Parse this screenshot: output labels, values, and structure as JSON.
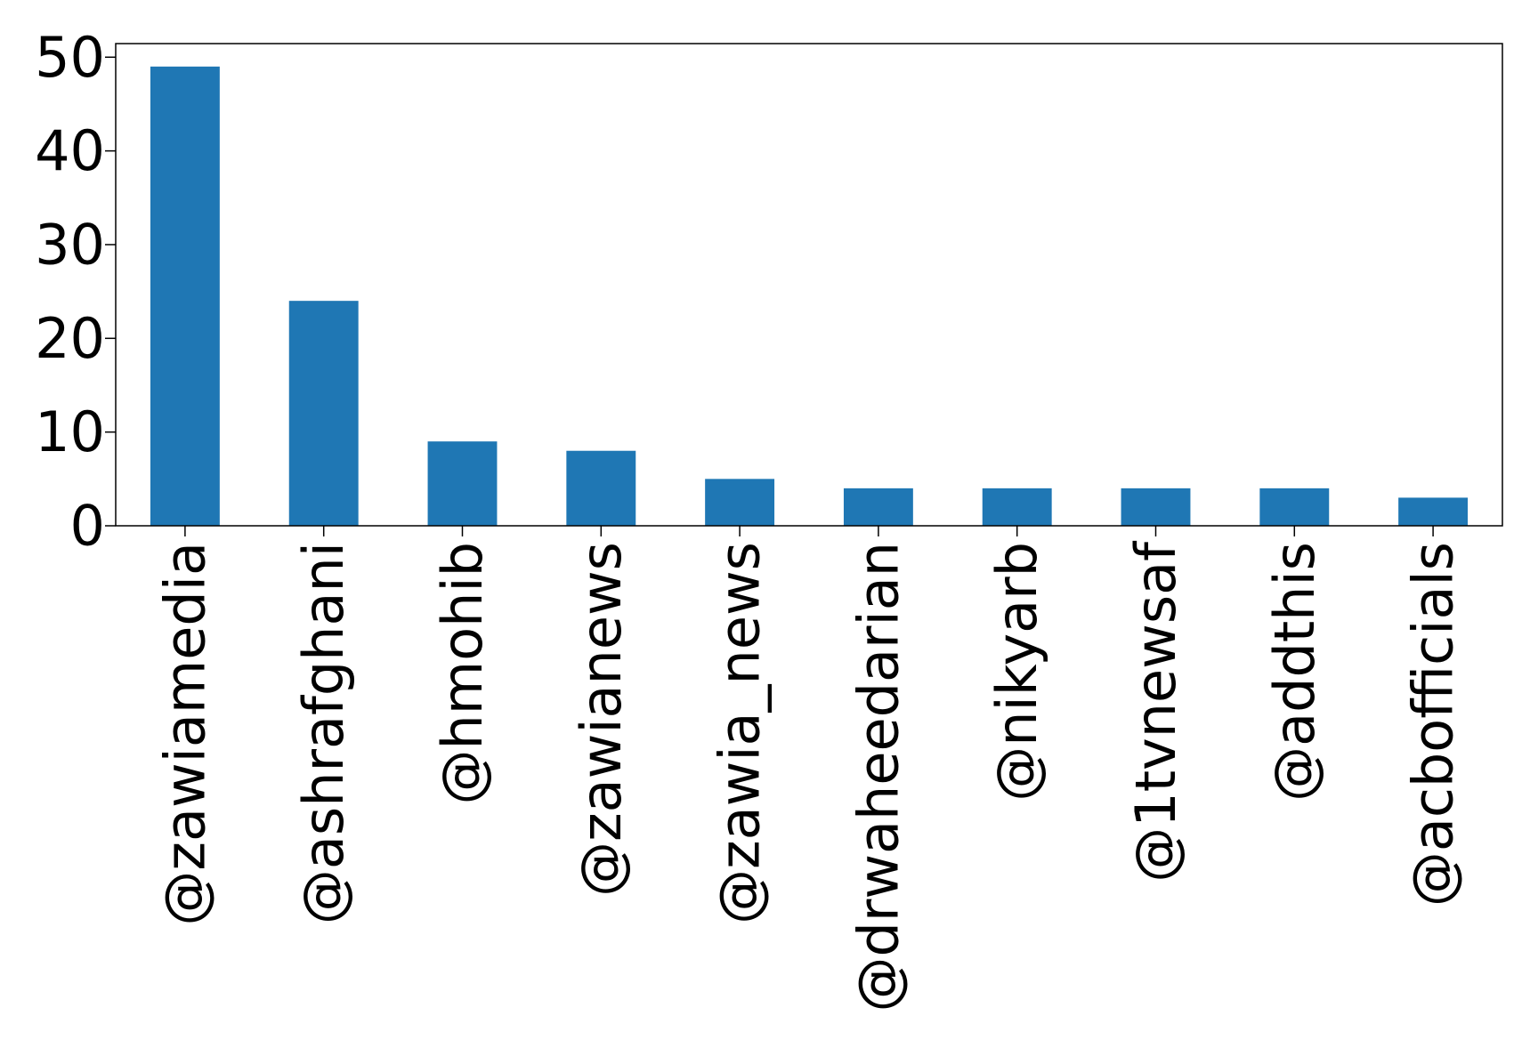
{
  "chart_data": {
    "type": "bar",
    "title": "",
    "xlabel": "",
    "ylabel": "",
    "categories": [
      "@zawiamedia",
      "@ashrafghani",
      "@hmohib",
      "@zawianews",
      "@zawia_news",
      "@drwaheedarian",
      "@nikyarb",
      "@1tvnewsaf",
      "@addthis",
      "@acbofficials"
    ],
    "values": [
      49,
      24,
      9,
      8,
      5,
      4,
      4,
      4,
      4,
      3
    ],
    "ylim": [
      0,
      51.45
    ],
    "yticks": [
      0,
      10,
      20,
      30,
      40,
      50
    ],
    "grid": false,
    "legend": "none",
    "bar_color": "#1f77b4"
  }
}
